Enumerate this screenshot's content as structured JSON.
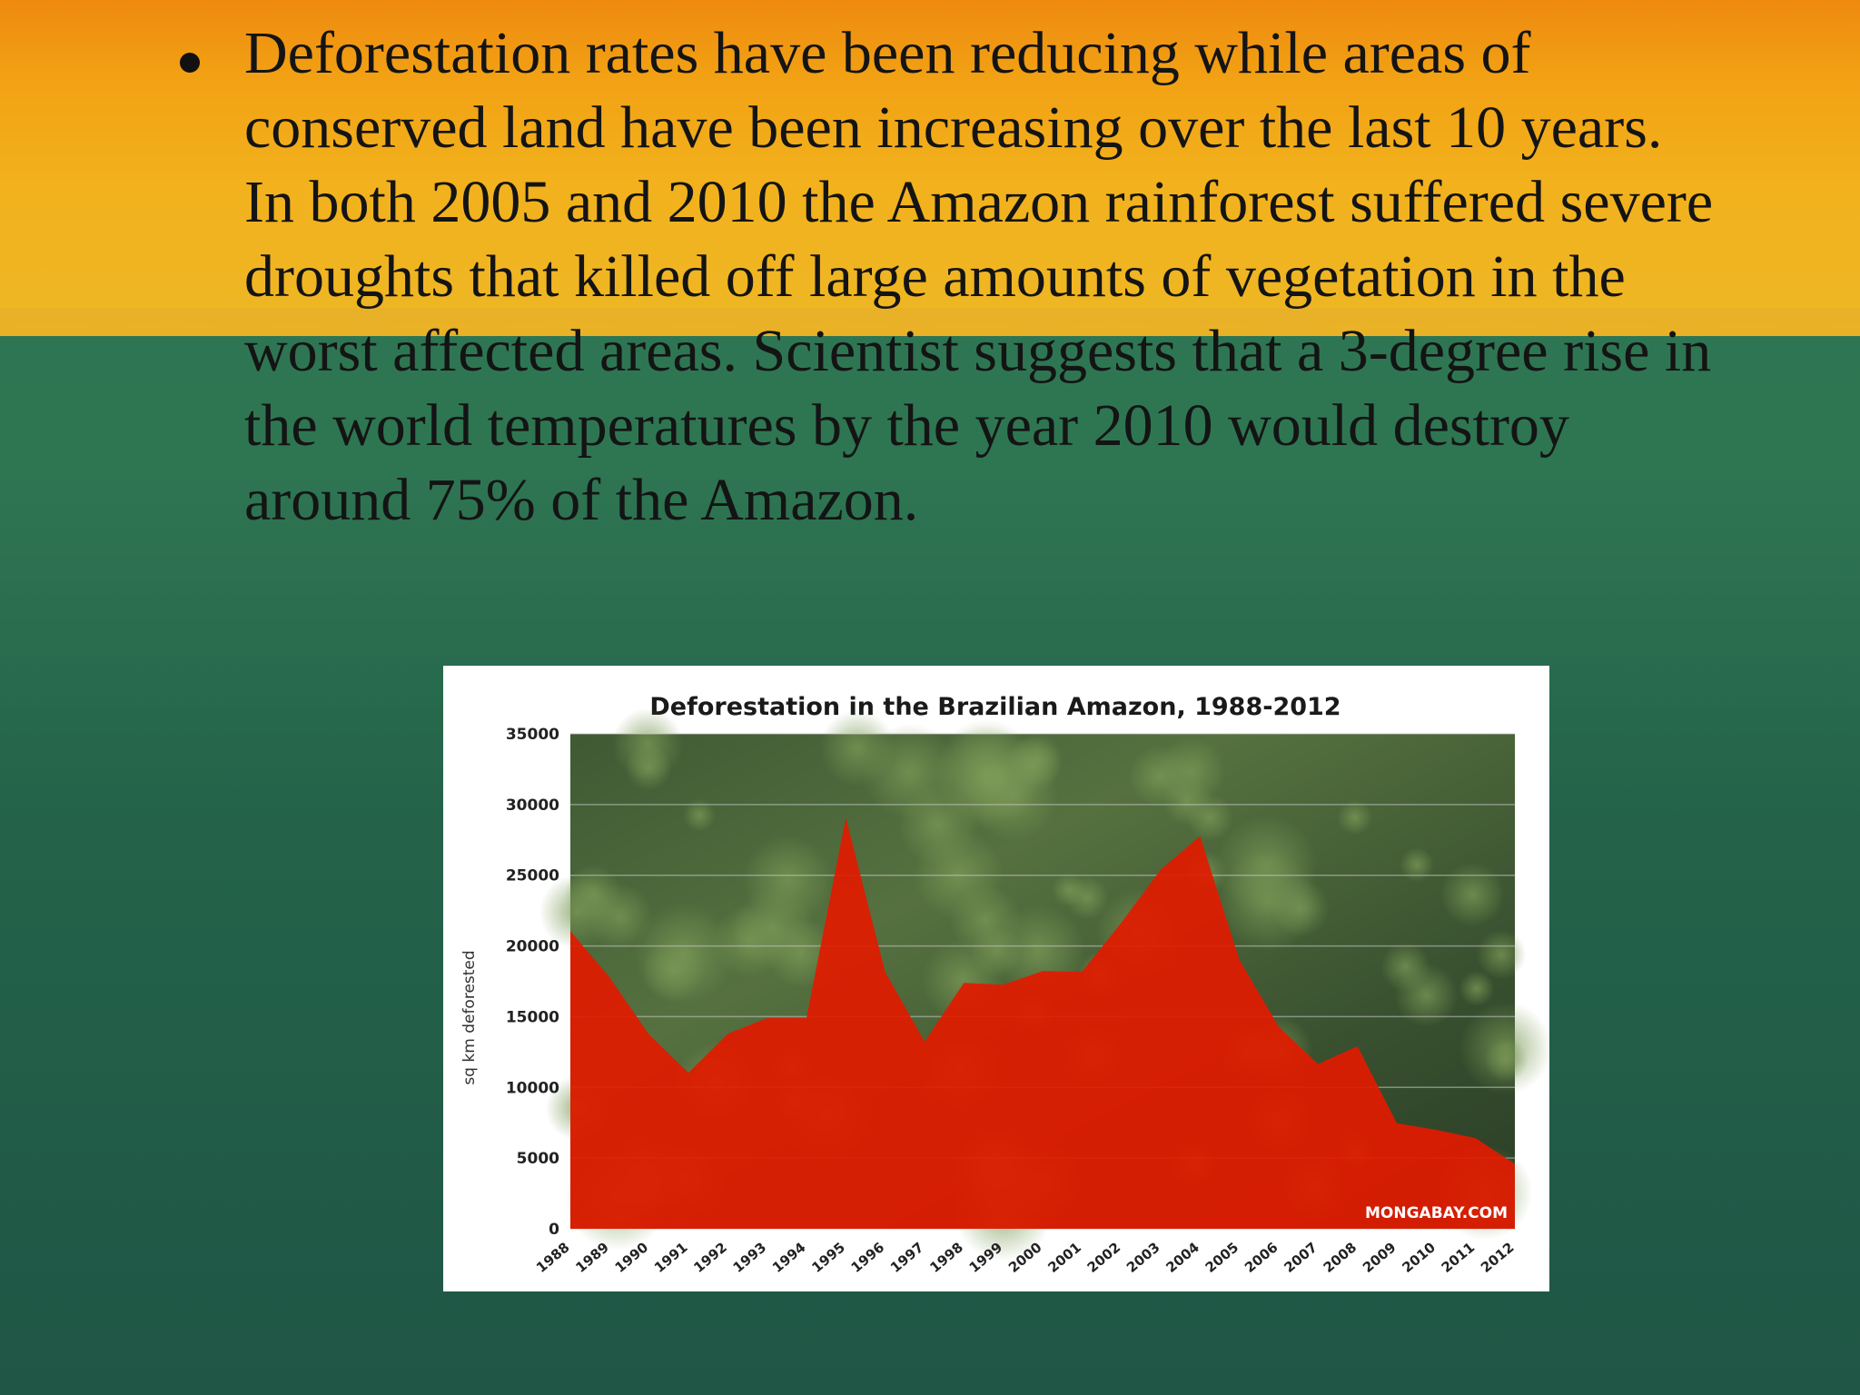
{
  "slide": {
    "bullet_text": "Deforestation rates have been reducing while areas of conserved land have been increasing over the last 10 years.  In both 2005 and 2010 the Amazon rainforest suffered severe droughts that killed off large amounts of vegetation in the worst affected areas. Scientist suggests that a 3-degree rise in the world temperatures by the year 2010 would destroy around 75% of the Amazon.",
    "colors": {
      "band_orange": "#f2a214",
      "background_green": "#2e7552",
      "area_red": "#e21a00"
    }
  },
  "chart_data": {
    "type": "area",
    "title": "Deforestation in the Brazilian Amazon, 1988-2012",
    "ylabel": "sq km deforested",
    "xlabel": "",
    "watermark": "MONGABAY.COM",
    "ylim": [
      0,
      35000
    ],
    "yticks": [
      "0",
      "5000",
      "10000",
      "15000",
      "20000",
      "25000",
      "30000",
      "35000"
    ],
    "grid": true,
    "background": "rainforest canopy photo",
    "categories": [
      "1988",
      "1989",
      "1990",
      "1991",
      "1992",
      "1993",
      "1994",
      "1995",
      "1996",
      "1997",
      "1998",
      "1999",
      "2000",
      "2001",
      "2002",
      "2003",
      "2004",
      "2005",
      "2006",
      "2007",
      "2008",
      "2009",
      "2010",
      "2011",
      "2012"
    ],
    "values": [
      21050,
      17770,
      13730,
      11030,
      13786,
      14896,
      14896,
      29059,
      18161,
      13227,
      17383,
      17259,
      18226,
      18165,
      21651,
      25396,
      27772,
      19014,
      14286,
      11651,
      12911,
      7464,
      7000,
      6418,
      4571
    ],
    "colors": {
      "area": "#e21a00"
    }
  }
}
